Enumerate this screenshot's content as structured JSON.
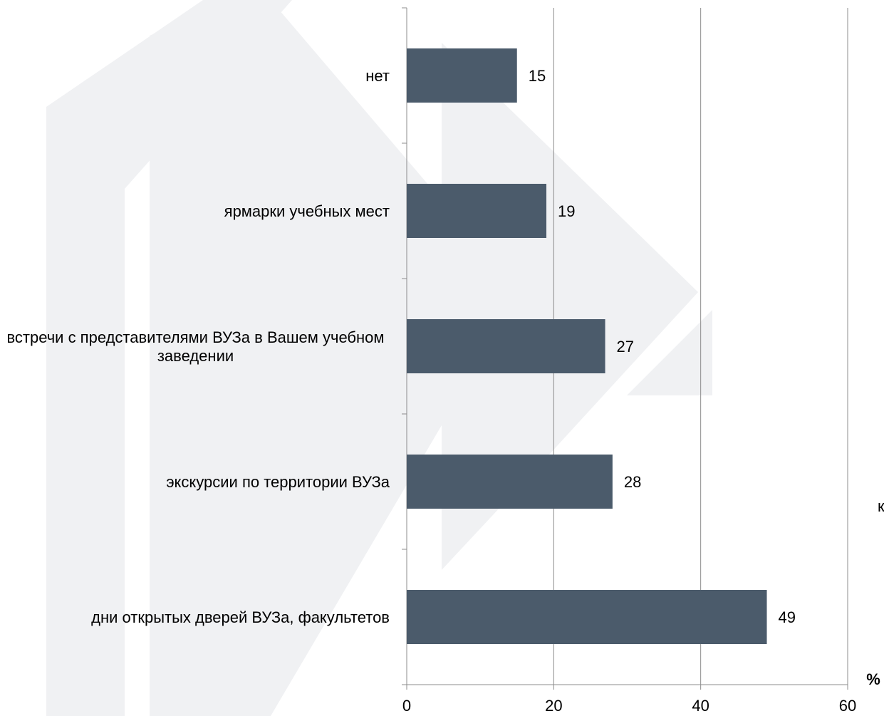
{
  "chart_data": {
    "type": "hbar",
    "categories": [
      "нет",
      "ярмарки учебных мест",
      "встречи с представителями ВУЗа в Вашем учебном заведении",
      "экскурсии по территории ВУЗа",
      "дни открытых дверей ВУЗа, факультетов"
    ],
    "values": [
      15,
      19,
      27,
      28,
      49
    ],
    "color": "#4b5b6b",
    "xlim": [
      0,
      60
    ],
    "xticks": [
      0,
      20,
      40,
      60
    ],
    "grid": true,
    "xlabel": "%",
    "annotation": "к"
  }
}
